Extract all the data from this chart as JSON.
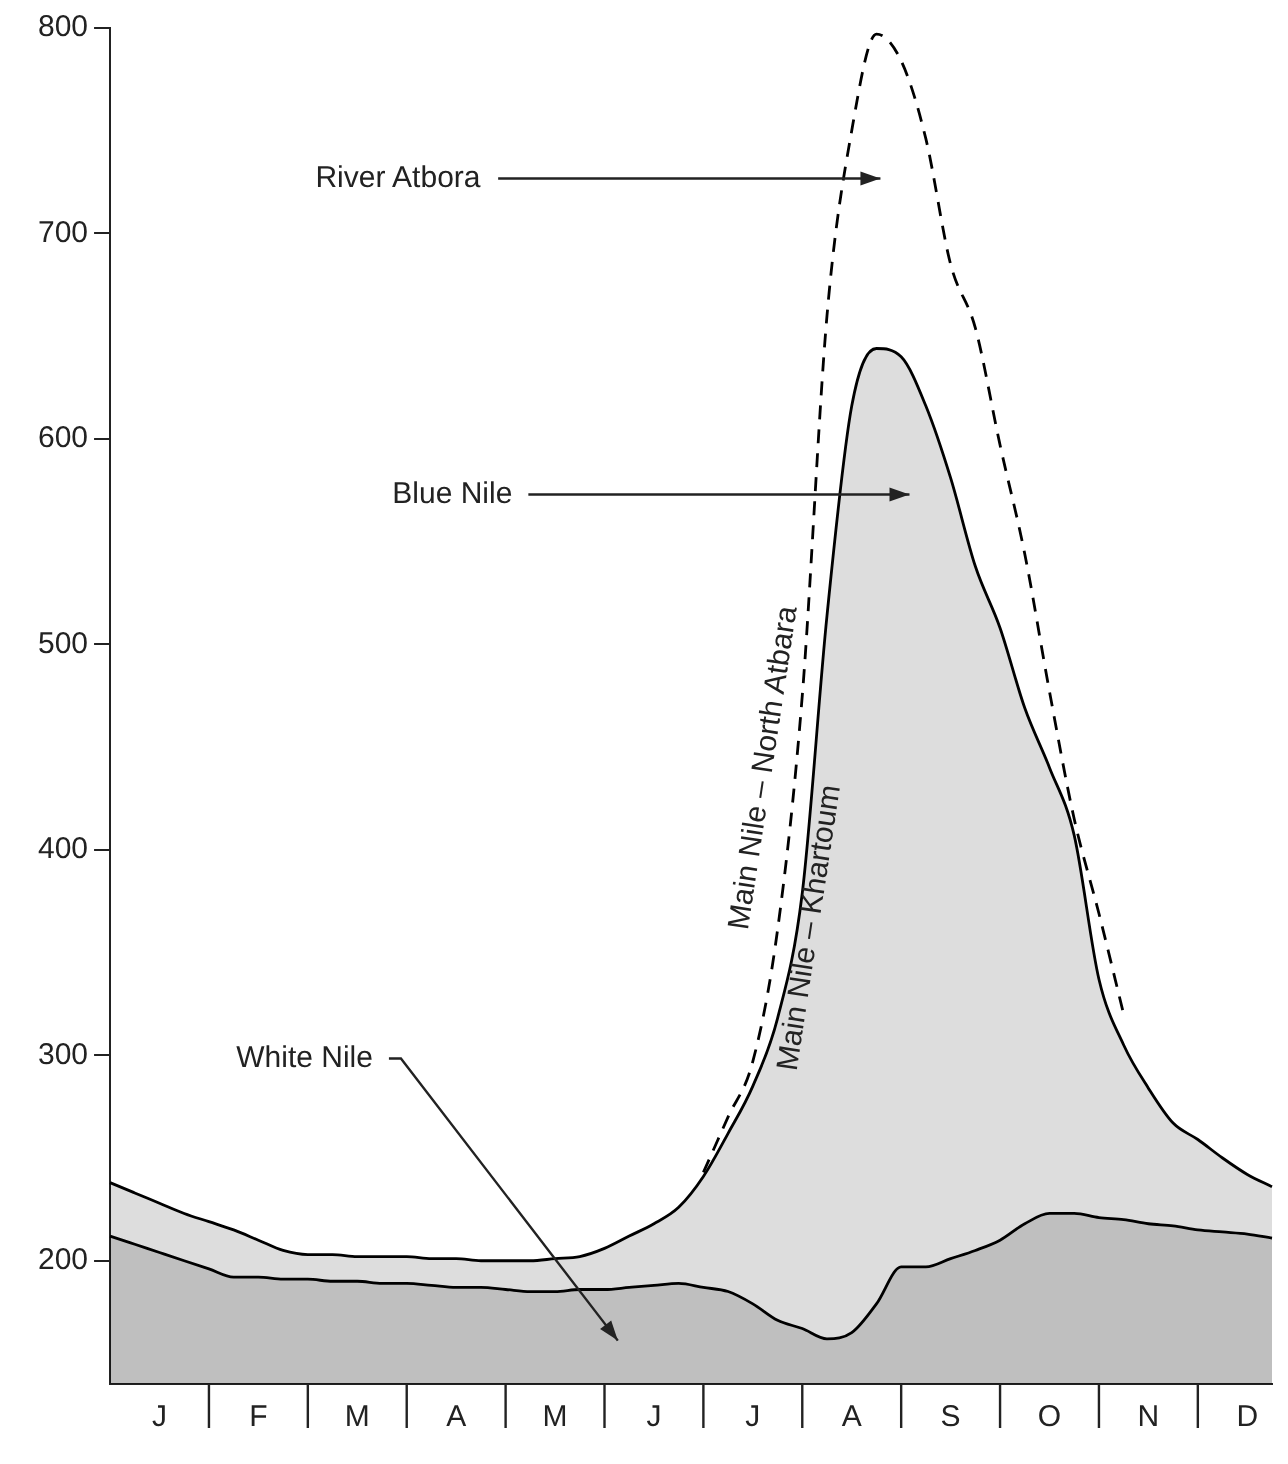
{
  "chart_data": {
    "type": "line",
    "categories": [
      null,
      null,
      "J",
      null,
      null,
      null,
      "F",
      null,
      null,
      null,
      "M",
      null,
      null,
      null,
      "A",
      null,
      null,
      null,
      "M",
      null,
      null,
      null,
      "J",
      null,
      null,
      null,
      "J",
      null,
      null,
      null,
      "A",
      null,
      null,
      null,
      "S",
      null,
      null,
      null,
      "O",
      null,
      null,
      null,
      "N",
      null,
      null,
      null,
      "D",
      null
    ],
    "ylim": [
      140,
      800
    ],
    "yticks": [
      200,
      300,
      400,
      500,
      600,
      700,
      800
    ],
    "legend": false,
    "grid": false,
    "marker": "none",
    "series": [
      {
        "type": "area",
        "color": "#000000",
        "line_style": "solid",
        "values": [
          212,
          208,
          204,
          200,
          196,
          192,
          192,
          191,
          191,
          190,
          190,
          189,
          189,
          188,
          187,
          187,
          186,
          185,
          185,
          186,
          186,
          187,
          188,
          189,
          187,
          185,
          179,
          171,
          167,
          162,
          165,
          179,
          197,
          197,
          201,
          205,
          210,
          218,
          223,
          223,
          221,
          220,
          218,
          217,
          215,
          214,
          213,
          211
        ]
      },
      {
        "type": "area",
        "name": "Main Nile – Khartoum",
        "color": "#000000",
        "line_style": "solid",
        "values": [
          238,
          233,
          228,
          223,
          219,
          215,
          210,
          205,
          203,
          203,
          202,
          202,
          202,
          201,
          201,
          200,
          200,
          200,
          201,
          202,
          206,
          212,
          218,
          226,
          241,
          262,
          285,
          318,
          379,
          514,
          616,
          644,
          640,
          616,
          581,
          538,
          508,
          469,
          440,
          407,
          337,
          305,
          284,
          267,
          259,
          250,
          242,
          236
        ]
      },
      {
        "type": "line",
        "name": "Main Nile – North Atbara",
        "color": "#000000",
        "line_style": "dashed",
        "values": [
          null,
          null,
          null,
          null,
          null,
          null,
          null,
          null,
          null,
          null,
          null,
          null,
          null,
          null,
          null,
          null,
          null,
          null,
          null,
          null,
          null,
          null,
          null,
          null,
          243,
          270,
          297,
          361,
          475,
          660,
          750,
          797,
          784,
          746,
          685,
          654,
          597,
          544,
          477,
          415,
          369,
          320,
          null,
          null,
          null,
          null,
          null,
          null
        ]
      }
    ],
    "annotations": [
      "River Atbora",
      "Blue Nile",
      "White Nile"
    ]
  }
}
